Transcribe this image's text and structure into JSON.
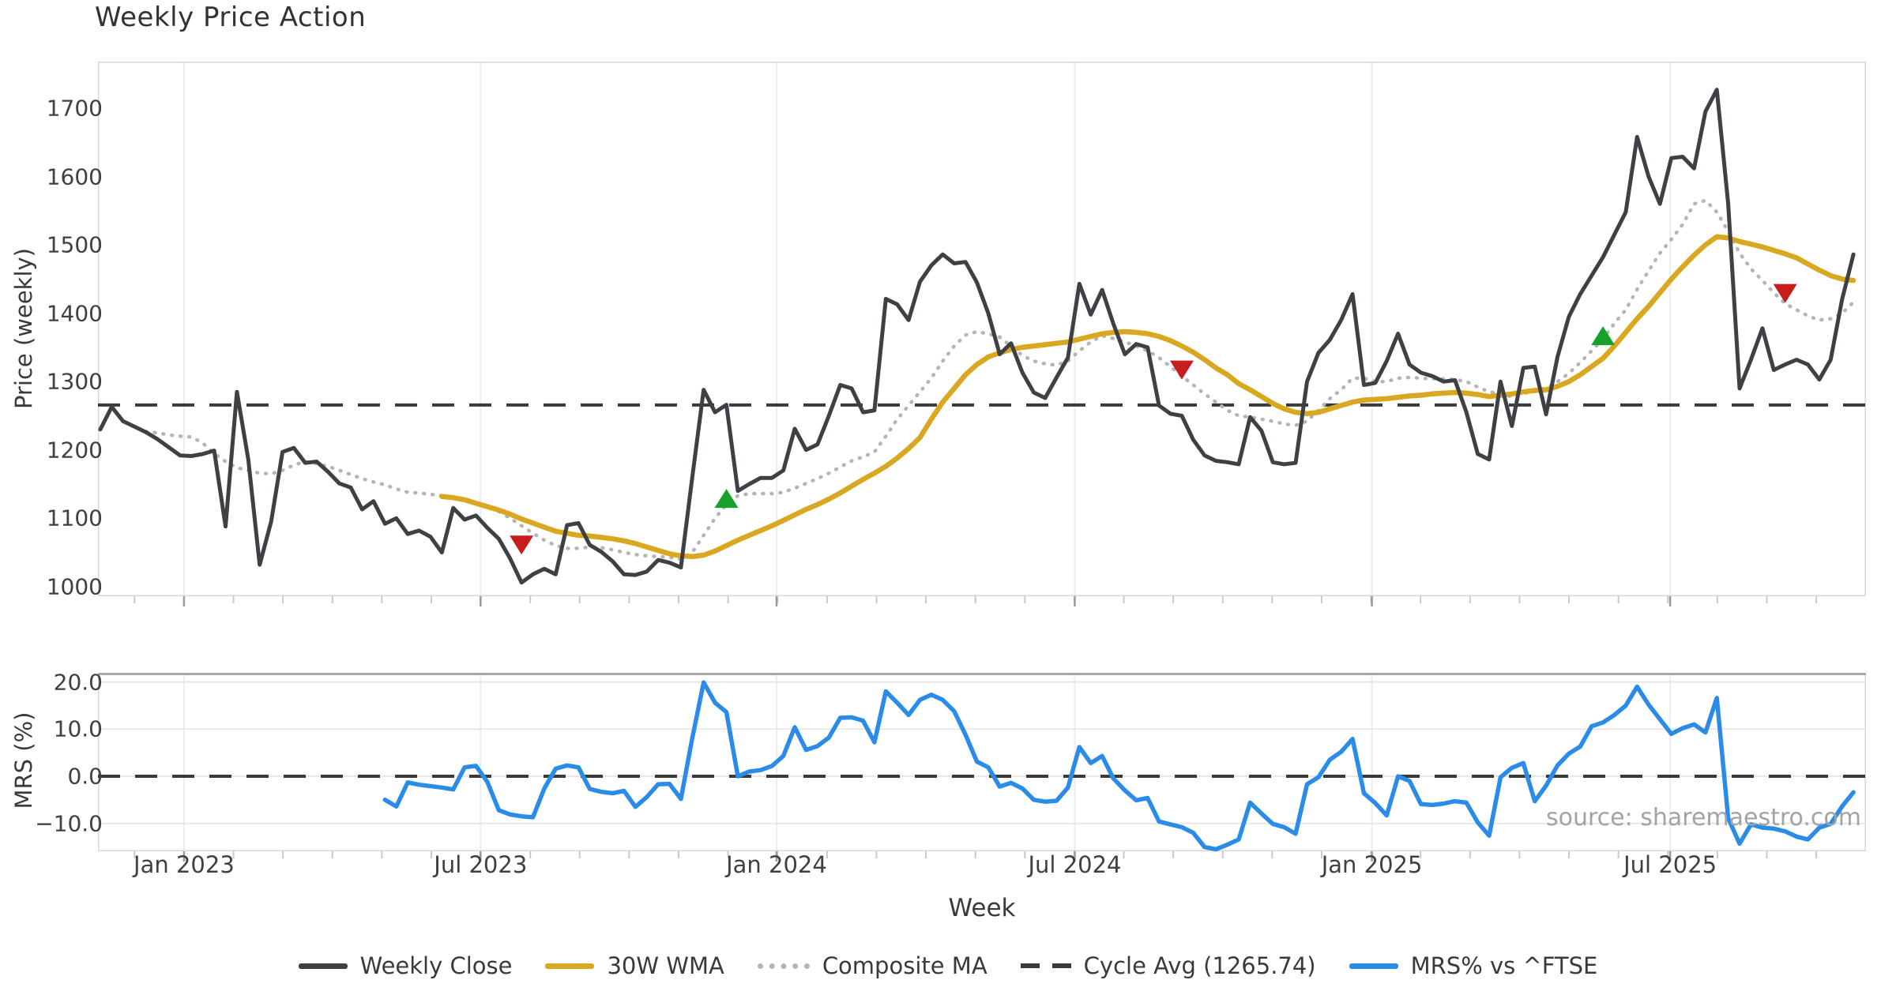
{
  "title": "Weekly Price Action",
  "watermark": "source: sharemaestro.com",
  "xaxis_label": "Week",
  "colors": {
    "close": "#3d4045",
    "wma": "#d9a820",
    "composite": "#b5b5b5",
    "cycle_avg": "#3a3a3a",
    "mrs": "#2b8ce8",
    "buy_marker": "#17a22e",
    "sell_marker": "#c91d1d",
    "gridline": "#ededed",
    "spine": "#d7d7d7",
    "panel2_top_spine": "#a8a8a8"
  },
  "legend": [
    {
      "label": "Weekly Close",
      "swatch": "sw-solid-close"
    },
    {
      "label": "30W WMA",
      "swatch": "sw-solid-wma"
    },
    {
      "label": "Composite MA",
      "swatch": "sw-dotted"
    },
    {
      "label": "Cycle Avg (1265.74)",
      "swatch": "sw-dashed"
    },
    {
      "label": "MRS% vs ^FTSE",
      "swatch": "sw-solid-mrs"
    }
  ],
  "chart_data": [
    {
      "type": "line",
      "panel": "price",
      "title": "Weekly Price Action",
      "ylabel": "Price (weekly)",
      "xlabel": "Week",
      "ylim": [
        986,
        1768
      ],
      "grid": "vertical-only",
      "legend_position": "bottom-center",
      "yticks": [
        {
          "label": "1700",
          "value": 1700
        },
        {
          "label": "1600",
          "value": 1600
        },
        {
          "label": "1500",
          "value": 1500
        },
        {
          "label": "1400",
          "value": 1400
        },
        {
          "label": "1300",
          "value": 1300
        },
        {
          "label": "1200",
          "value": 1200
        },
        {
          "label": "1100",
          "value": 1100
        },
        {
          "label": "1000",
          "value": 1000
        }
      ],
      "xticks": [
        {
          "label": "Jan 2023",
          "week": 7.35
        },
        {
          "label": "Jul 2023",
          "week": 33.4
        },
        {
          "label": "Jan 2024",
          "week": 59.4
        },
        {
          "label": "Jul 2024",
          "week": 85.6
        },
        {
          "label": "Jan 2025",
          "week": 111.7
        },
        {
          "label": "Jul 2025",
          "week": 137.9
        }
      ],
      "cycle_avg_value": 1265.74,
      "series": [
        {
          "name": "Weekly Close",
          "style": "solid",
          "width": 5,
          "start_week": 0,
          "values": [
            1230,
            1263,
            1242,
            1234,
            1226,
            1216,
            1204,
            1192,
            1191,
            1194,
            1199,
            1088,
            1285,
            1186,
            1032,
            1095,
            1197,
            1203,
            1181,
            1183,
            1168,
            1151,
            1145,
            1113,
            1125,
            1092,
            1100,
            1077,
            1082,
            1073,
            1050,
            1115,
            1098,
            1104,
            1086,
            1070,
            1041,
            1006,
            1018,
            1026,
            1018,
            1090,
            1093,
            1061,
            1051,
            1037,
            1018,
            1017,
            1022,
            1039,
            1035,
            1028,
            1160,
            1288,
            1255,
            1266,
            1140,
            1150,
            1159,
            1159,
            1170,
            1231,
            1200,
            1208,
            1250,
            1295,
            1290,
            1255,
            1258,
            1421,
            1413,
            1390,
            1446,
            1470,
            1486,
            1473,
            1475,
            1445,
            1400,
            1340,
            1356,
            1313,
            1284,
            1276,
            1306,
            1335,
            1443,
            1398,
            1434,
            1384,
            1340,
            1355,
            1350,
            1265,
            1253,
            1250,
            1215,
            1192,
            1184,
            1182,
            1179,
            1248,
            1228,
            1182,
            1179,
            1181,
            1300,
            1342,
            1361,
            1390,
            1428,
            1295,
            1298,
            1330,
            1370,
            1325,
            1313,
            1308,
            1300,
            1302,
            1255,
            1194,
            1186,
            1300,
            1235,
            1320,
            1322,
            1252,
            1336,
            1395,
            1428,
            1455,
            1482,
            1515,
            1548,
            1658,
            1600,
            1560,
            1627,
            1629,
            1612,
            1695,
            1727,
            1560,
            1290,
            1332,
            1378,
            1317,
            1325,
            1332,
            1325,
            1303,
            1332,
            1420,
            1486
          ]
        },
        {
          "name": "30W WMA",
          "style": "solid",
          "width": 6.5,
          "start_week": 30,
          "values": [
            1132,
            1130,
            1127,
            1122,
            1117,
            1112,
            1106,
            1099,
            1093,
            1087,
            1081,
            1078,
            1075,
            1074,
            1072,
            1070,
            1067,
            1063,
            1058,
            1053,
            1048,
            1045,
            1044,
            1046,
            1052,
            1060,
            1068,
            1075,
            1082,
            1089,
            1097,
            1105,
            1113,
            1120,
            1128,
            1137,
            1147,
            1157,
            1166,
            1176,
            1188,
            1202,
            1218,
            1245,
            1270,
            1290,
            1310,
            1325,
            1336,
            1342,
            1347,
            1350,
            1352,
            1354,
            1356,
            1358,
            1362,
            1366,
            1370,
            1372,
            1373,
            1372,
            1370,
            1366,
            1360,
            1352,
            1343,
            1332,
            1320,
            1310,
            1297,
            1288,
            1278,
            1268,
            1260,
            1255,
            1253,
            1255,
            1260,
            1265,
            1270,
            1273,
            1274,
            1275,
            1277,
            1279,
            1280,
            1282,
            1283,
            1284,
            1283,
            1281,
            1278,
            1280,
            1282,
            1285,
            1287,
            1288,
            1293,
            1300,
            1310,
            1322,
            1334,
            1352,
            1372,
            1392,
            1410,
            1430,
            1450,
            1468,
            1485,
            1500,
            1512,
            1510,
            1505,
            1501,
            1497,
            1492,
            1487,
            1481,
            1472,
            1463,
            1455,
            1450,
            1448
          ]
        },
        {
          "name": "Composite MA",
          "style": "dotted",
          "width": 4.5,
          "start_week": 4,
          "values": [
            1227,
            1225,
            1222,
            1220,
            1219,
            1210,
            1195,
            1183,
            1174,
            1170,
            1166,
            1165,
            1170,
            1178,
            1183,
            1180,
            1176,
            1170,
            1164,
            1158,
            1153,
            1149,
            1143,
            1138,
            1137,
            1135,
            1133,
            1130,
            1126,
            1122,
            1117,
            1110,
            1100,
            1089,
            1078,
            1068,
            1060,
            1056,
            1056,
            1058,
            1057,
            1054,
            1050,
            1047,
            1045,
            1044,
            1043,
            1040,
            1050,
            1075,
            1100,
            1120,
            1133,
            1136,
            1136,
            1136,
            1138,
            1144,
            1151,
            1158,
            1166,
            1175,
            1184,
            1190,
            1197,
            1220,
            1245,
            1265,
            1285,
            1305,
            1330,
            1352,
            1368,
            1373,
            1370,
            1365,
            1352,
            1338,
            1330,
            1326,
            1324,
            1330,
            1345,
            1358,
            1367,
            1363,
            1358,
            1352,
            1345,
            1335,
            1322,
            1308,
            1295,
            1282,
            1270,
            1258,
            1250,
            1248,
            1245,
            1242,
            1238,
            1236,
            1242,
            1258,
            1275,
            1288,
            1305,
            1305,
            1300,
            1300,
            1305,
            1306,
            1305,
            1304,
            1304,
            1303,
            1300,
            1292,
            1285,
            1282,
            1278,
            1282,
            1288,
            1290,
            1300,
            1312,
            1328,
            1345,
            1362,
            1385,
            1405,
            1435,
            1462,
            1488,
            1508,
            1530,
            1560,
            1565,
            1548,
            1520,
            1488,
            1465,
            1448,
            1430,
            1414,
            1405,
            1396,
            1390,
            1392,
            1400,
            1416
          ]
        },
        {
          "name": "Cycle Avg (1265.74)",
          "style": "dashed",
          "width": 4,
          "value": 1265.74
        }
      ],
      "markers": {
        "buy": [
          {
            "week": 55,
            "price": 1128
          },
          {
            "week": 132,
            "price": 1366
          }
        ],
        "sell": [
          {
            "week": 37,
            "price": 1062
          },
          {
            "week": 95,
            "price": 1318
          },
          {
            "week": 148,
            "price": 1430
          }
        ]
      }
    },
    {
      "type": "line",
      "panel": "mrs",
      "ylabel": "MRS (%)",
      "ylim": [
        -16,
        22
      ],
      "grid": "both",
      "yticks": [
        {
          "label": "20.0",
          "value": 20
        },
        {
          "label": "10.0",
          "value": 10
        },
        {
          "label": "0.0",
          "value": 0
        },
        {
          "label": "−10.0",
          "value": -10
        }
      ],
      "zero_line": 0,
      "series": [
        {
          "name": "MRS% vs ^FTSE",
          "style": "solid",
          "width": 5.5,
          "start_week": 25,
          "values": [
            -5.0,
            -6.4,
            -1.3,
            -1.8,
            -2.1,
            -2.4,
            -2.8,
            1.9,
            2.2,
            -1.2,
            -7.2,
            -8.1,
            -8.5,
            -8.7,
            -2.6,
            1.6,
            2.3,
            1.9,
            -2.7,
            -3.3,
            -3.6,
            -3.1,
            -6.5,
            -4.4,
            -1.7,
            -1.6,
            -4.8,
            8.1,
            19.9,
            15.6,
            13.6,
            0.0,
            1.0,
            1.3,
            2.2,
            4.3,
            10.4,
            5.6,
            6.4,
            8.2,
            12.4,
            12.5,
            11.8,
            7.2,
            18.0,
            15.6,
            13.0,
            16.2,
            17.3,
            16.2,
            13.8,
            8.8,
            3.1,
            1.9,
            -2.2,
            -1.4,
            -2.6,
            -5.0,
            -5.4,
            -5.2,
            -2.4,
            6.2,
            2.8,
            4.3,
            -0.5,
            -3.0,
            -5.1,
            -4.6,
            -9.6,
            -10.2,
            -10.8,
            -12.0,
            -15.0,
            -15.5,
            -14.5,
            -13.4,
            -5.6,
            -7.9,
            -10.1,
            -10.8,
            -12.2,
            -1.7,
            -0.2,
            3.5,
            5.2,
            7.9,
            -3.6,
            -5.7,
            -8.3,
            0.0,
            -1.0,
            -5.9,
            -6.1,
            -5.8,
            -5.3,
            -5.6,
            -9.8,
            -12.6,
            -0.2,
            1.8,
            2.8,
            -5.3,
            -2.0,
            2.3,
            4.8,
            6.3,
            10.6,
            11.4,
            13.0,
            15.0,
            19.0,
            15.2,
            12.1,
            9.0,
            10.2,
            11.0,
            9.3,
            16.6,
            -8.9,
            -14.3,
            -10.2,
            -10.9,
            -11.1,
            -11.7,
            -12.8,
            -13.4,
            -10.9,
            -10.1,
            -6.4,
            -3.4
          ]
        }
      ]
    }
  ]
}
